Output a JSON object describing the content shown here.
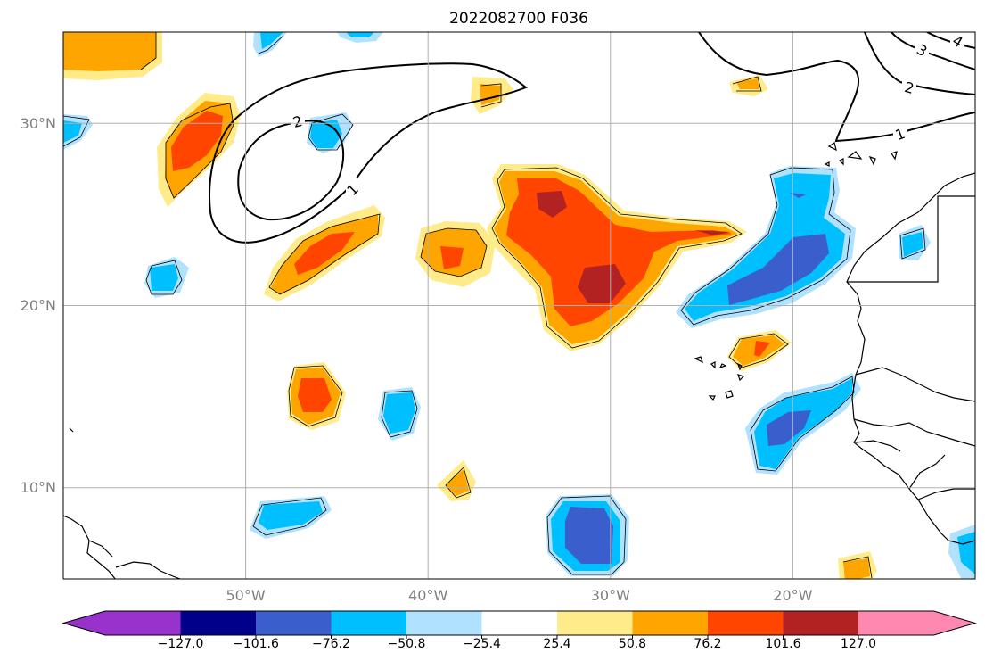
{
  "map": {
    "title": "2022082700 F036",
    "extent": {
      "lon_min": -60,
      "lon_max": -10,
      "lat_min": 5,
      "lat_max": 35
    },
    "lon_ticks": [
      {
        "lon": -50,
        "label": "50°W"
      },
      {
        "lon": -40,
        "label": "40°W"
      },
      {
        "lon": -30,
        "label": "30°W"
      },
      {
        "lon": -20,
        "label": "20°W"
      }
    ],
    "lat_ticks": [
      {
        "lat": 10,
        "label": "10°N"
      },
      {
        "lat": 20,
        "label": "20°N"
      },
      {
        "lat": 30,
        "label": "30°N"
      }
    ],
    "gridlines": true,
    "contour_labels": [
      "1",
      "2",
      "3",
      "4"
    ]
  },
  "colorbar": {
    "colors": [
      "#9932cc",
      "#00008b",
      "#3a5fcd",
      "#00bfff",
      "#b0e2ff",
      "#ffffff",
      "#ffeb8a",
      "#ffa500",
      "#ff4500",
      "#b22222",
      "#ff88b0"
    ],
    "tick_labels": [
      "−127.0",
      "−101.6",
      "−76.2",
      "−50.8",
      "−25.4",
      "25.4",
      "50.8",
      "76.2",
      "101.6",
      "127.0"
    ]
  }
}
